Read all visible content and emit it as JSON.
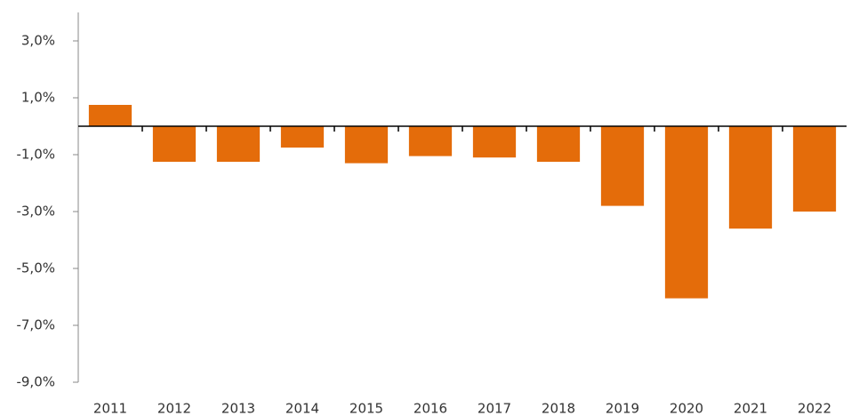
{
  "chart_data": {
    "type": "bar",
    "categories": [
      "2011",
      "2012",
      "2013",
      "2014",
      "2015",
      "2016",
      "2017",
      "2018",
      "2019",
      "2020",
      "2021",
      "2022"
    ],
    "values": [
      0.75,
      -1.25,
      -1.25,
      -0.75,
      -1.3,
      -1.05,
      -1.1,
      -1.25,
      -2.8,
      -6.05,
      -3.6,
      -3.0
    ],
    "color": "#e46c0a",
    "ylim": [
      -9,
      4
    ],
    "yticks": [
      {
        "value": 3,
        "label": "3,0%"
      },
      {
        "value": 1,
        "label": "1,0%"
      },
      {
        "value": -1,
        "label": "-1,0%"
      },
      {
        "value": -3,
        "label": "-3,0%"
      },
      {
        "value": -5,
        "label": "-5,0%"
      },
      {
        "value": -7,
        "label": "-7,0%"
      },
      {
        "value": -9,
        "label": "-9,0%"
      }
    ],
    "grid": false
  }
}
